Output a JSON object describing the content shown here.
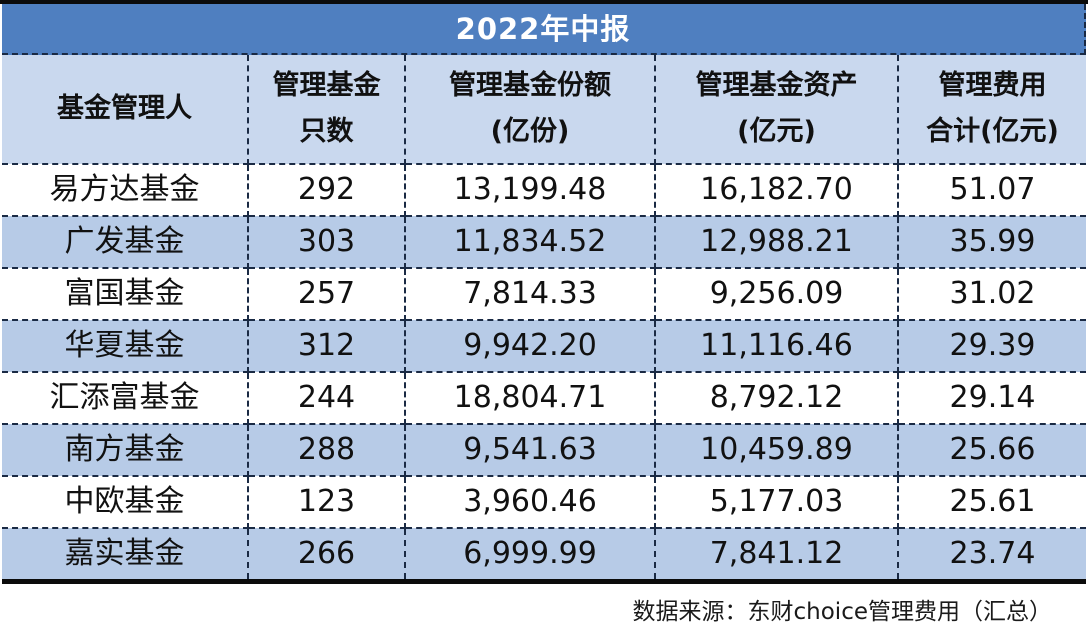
{
  "title": "2022年中报",
  "headers": [
    {
      "line1": "基金管理人",
      "line2": ""
    },
    {
      "line1": "管理基金",
      "line2": "只数"
    },
    {
      "line1": "管理基金份额",
      "line2": "(亿份)"
    },
    {
      "line1": "管理基金资产",
      "line2": "(亿元)"
    },
    {
      "line1": "管理费用",
      "line2": "合计(亿元)"
    }
  ],
  "rows": [
    {
      "manager": "易方达基金",
      "fund_count": "292",
      "shares": "13,199.48",
      "assets": "16,182.70",
      "fees": "51.07"
    },
    {
      "manager": "广发基金",
      "fund_count": "303",
      "shares": "11,834.52",
      "assets": "12,988.21",
      "fees": "35.99"
    },
    {
      "manager": "富国基金",
      "fund_count": "257",
      "shares": "7,814.33",
      "assets": "9,256.09",
      "fees": "31.02"
    },
    {
      "manager": "华夏基金",
      "fund_count": "312",
      "shares": "9,942.20",
      "assets": "11,116.46",
      "fees": "29.39"
    },
    {
      "manager": "汇添富基金",
      "fund_count": "244",
      "shares": "18,804.71",
      "assets": "8,792.12",
      "fees": "29.14"
    },
    {
      "manager": "南方基金",
      "fund_count": "288",
      "shares": "9,541.63",
      "assets": "10,459.89",
      "fees": "25.66"
    },
    {
      "manager": "中欧基金",
      "fund_count": "123",
      "shares": "3,960.46",
      "assets": "5,177.03",
      "fees": "25.61"
    },
    {
      "manager": "嘉实基金",
      "fund_count": "266",
      "shares": "6,999.99",
      "assets": "7,841.12",
      "fees": "23.74"
    }
  ],
  "footer": "数据来源：东财choice管理费用（汇总）",
  "colors": {
    "title_bg": "#4f7fc0",
    "header_bg": "#c9d8ee",
    "band_bg": "#b7cbe7"
  }
}
